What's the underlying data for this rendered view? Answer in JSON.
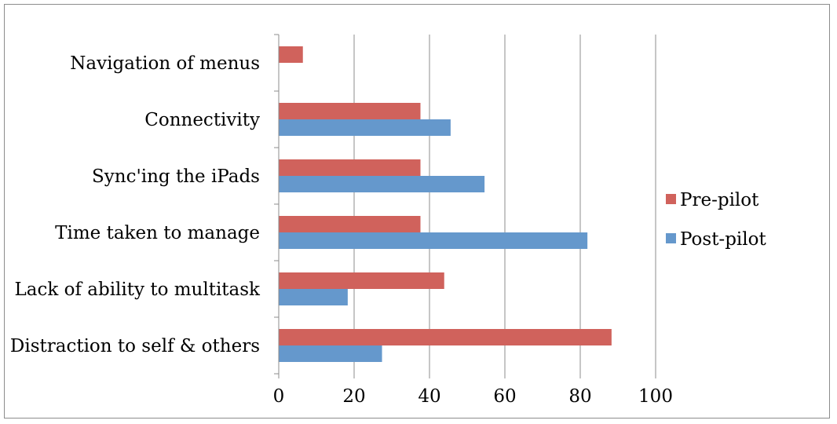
{
  "chart_data": {
    "type": "bar",
    "orientation": "horizontal",
    "categories": [
      "Distraction to self & others",
      "Lack of ability to multitask",
      "Time taken to manage",
      "Sync'ing the iPads",
      "Connectivity",
      "Navigation of menus"
    ],
    "series": [
      {
        "name": "Pre-pilot",
        "color": "#d0625c",
        "values": [
          88.2,
          43.8,
          37.5,
          37.5,
          37.5,
          6.3
        ]
      },
      {
        "name": "Post-pilot",
        "color": "#6598cc",
        "values": [
          27.3,
          18.2,
          81.8,
          54.5,
          45.5,
          0
        ]
      }
    ],
    "xlim": [
      0,
      100
    ],
    "xticks": [
      0,
      20,
      40,
      60,
      80,
      100
    ],
    "grid": true,
    "legend_position": "right",
    "title": "",
    "xlabel": "",
    "ylabel": ""
  }
}
